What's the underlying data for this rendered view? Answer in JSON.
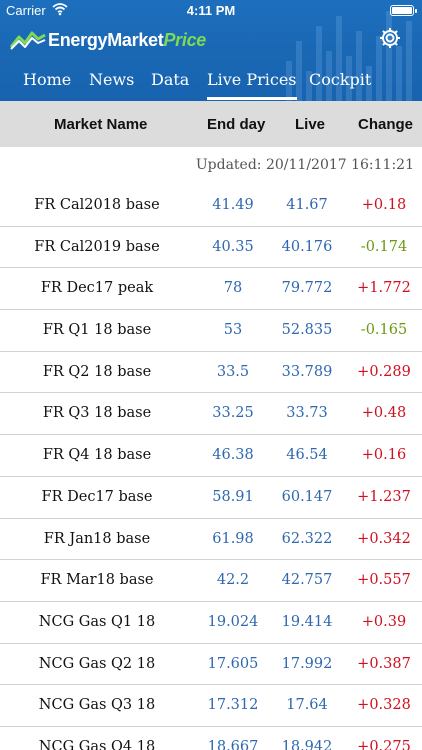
{
  "status_bar": {
    "carrier": "Carrier",
    "time": "4:11 PM"
  },
  "app": {
    "brand_main": "EnergyMarket",
    "brand_accent": "Price"
  },
  "tabs": [
    {
      "label": "Home",
      "active": false
    },
    {
      "label": "News",
      "active": false
    },
    {
      "label": "Data",
      "active": false
    },
    {
      "label": "Live Prices",
      "active": true
    },
    {
      "label": "Cockpit",
      "active": false
    }
  ],
  "table": {
    "headers": {
      "name": "Market Name",
      "end": "End day",
      "live": "Live",
      "change": "Change"
    },
    "updated": "Updated: 20/11/2017 16:11:21",
    "rows": [
      {
        "name": "FR Cal2018 base",
        "end": "41.49",
        "live": "41.67",
        "change": "+0.18"
      },
      {
        "name": "FR Cal2019 base",
        "end": "40.35",
        "live": "40.176",
        "change": "-0.174"
      },
      {
        "name": "FR Dec17 peak",
        "end": "78",
        "live": "79.772",
        "change": "+1.772"
      },
      {
        "name": "FR Q1 18 base",
        "end": "53",
        "live": "52.835",
        "change": "-0.165"
      },
      {
        "name": "FR Q2 18 base",
        "end": "33.5",
        "live": "33.789",
        "change": "+0.289"
      },
      {
        "name": "FR Q3 18 base",
        "end": "33.25",
        "live": "33.73",
        "change": "+0.48"
      },
      {
        "name": "FR Q4 18 base",
        "end": "46.38",
        "live": "46.54",
        "change": "+0.16"
      },
      {
        "name": "FR Dec17 base",
        "end": "58.91",
        "live": "60.147",
        "change": "+1.237"
      },
      {
        "name": "FR Jan18 base",
        "end": "61.98",
        "live": "62.322",
        "change": "+0.342"
      },
      {
        "name": "FR Mar18 base",
        "end": "42.2",
        "live": "42.757",
        "change": "+0.557"
      },
      {
        "name": "NCG Gas Q1 18",
        "end": "19.024",
        "live": "19.414",
        "change": "+0.39"
      },
      {
        "name": "NCG Gas Q2 18",
        "end": "17.605",
        "live": "17.992",
        "change": "+0.387"
      },
      {
        "name": "NCG Gas Q3 18",
        "end": "17.312",
        "live": "17.64",
        "change": "+0.328"
      },
      {
        "name": "NCG Gas Q4 18",
        "end": "18.667",
        "live": "18.942",
        "change": "+0.275"
      }
    ]
  },
  "colors": {
    "header_blue": "#1a67b3",
    "value_blue": "#2f68b0",
    "positive_red": "#d01020",
    "negative_green": "#6a9a12",
    "header_row_gray": "#dcdcdc"
  },
  "icons": {
    "settings": "gear-icon",
    "wifi": "wifi-icon",
    "battery": "battery-icon",
    "logo": "logo-mark-icon"
  }
}
